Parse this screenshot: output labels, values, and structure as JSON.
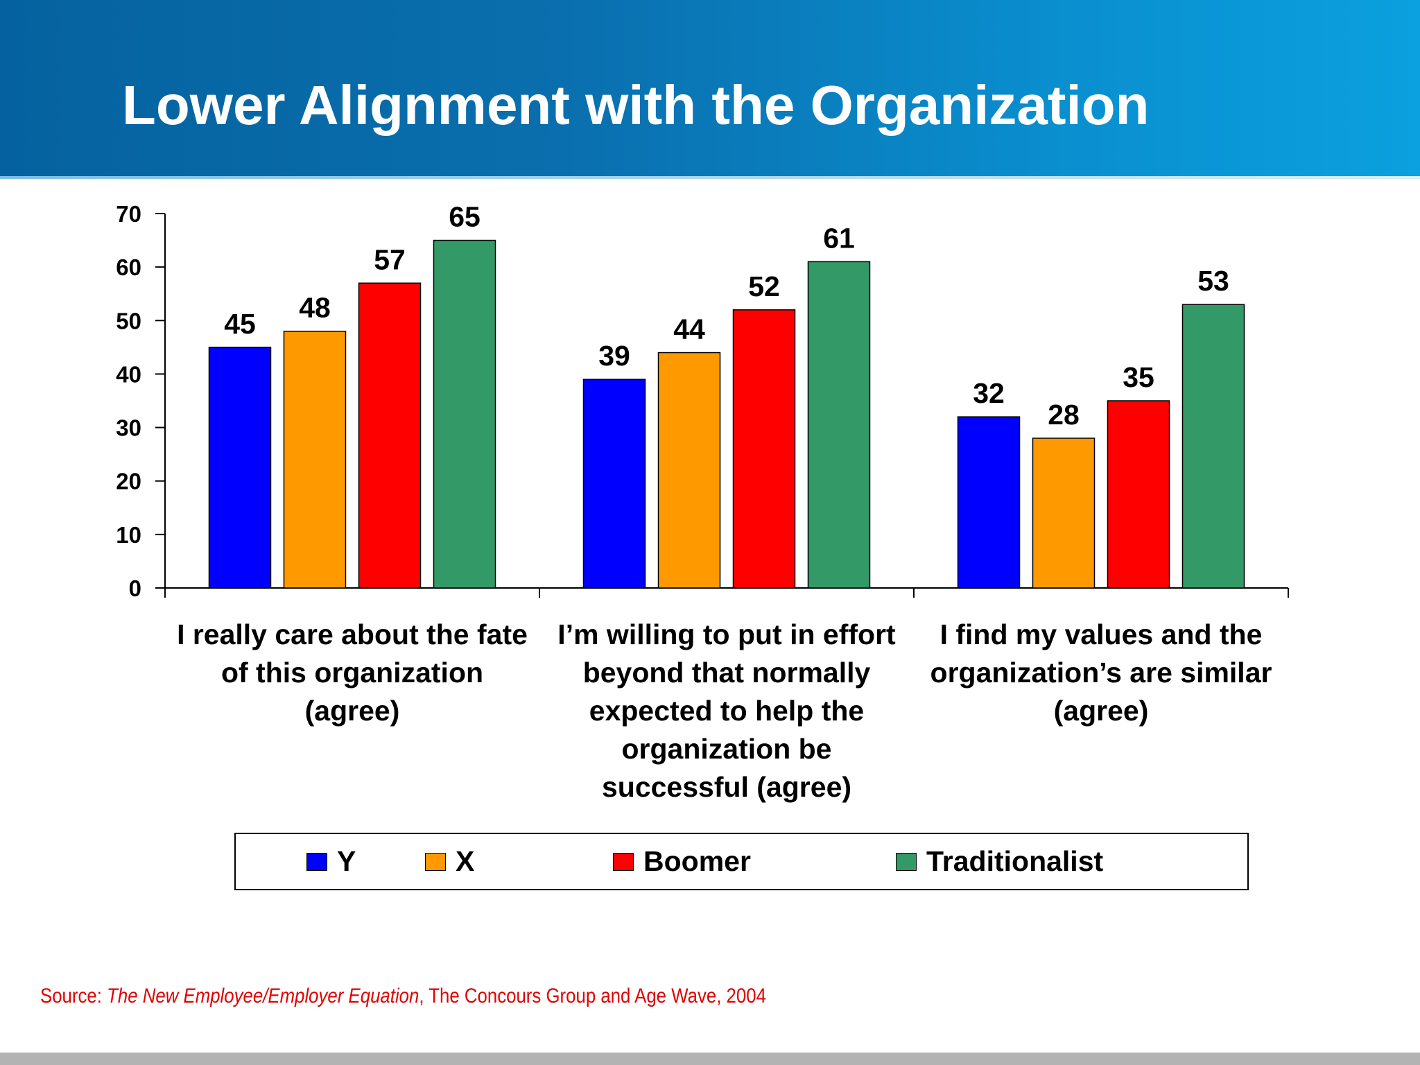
{
  "title": "Lower Alignment with the Organization",
  "colors": {
    "Y": "#0000ff",
    "X": "#ff9900",
    "Boomer": "#ff0000",
    "Traditionalist": "#339966"
  },
  "chart_data": {
    "type": "bar",
    "title": "",
    "xlabel": "",
    "ylabel": "",
    "ylim": [
      0,
      70
    ],
    "yticks": [
      0,
      10,
      20,
      30,
      40,
      50,
      60,
      70
    ],
    "grid": false,
    "legend_position": "bottom",
    "data_labels": true,
    "categories": [
      [
        "I really care about the fate",
        "of this organization",
        "(agree)"
      ],
      [
        "I’m willing to put in effort",
        "beyond that  normally",
        "expected to help the",
        "organization be",
        "successful (agree)"
      ],
      [
        "I find my values and the",
        "organization’s are similar",
        "(agree)"
      ]
    ],
    "series": [
      {
        "name": "Y",
        "values": [
          45,
          39,
          32
        ]
      },
      {
        "name": "X",
        "values": [
          48,
          44,
          28
        ]
      },
      {
        "name": "Boomer",
        "values": [
          57,
          52,
          35
        ]
      },
      {
        "name": "Traditionalist",
        "values": [
          65,
          61,
          53
        ]
      }
    ]
  },
  "source": {
    "prefix": "Source:  ",
    "title": "The New Employee/Employer Equation",
    "suffix": ", The Concours Group and Age Wave, 2004"
  }
}
